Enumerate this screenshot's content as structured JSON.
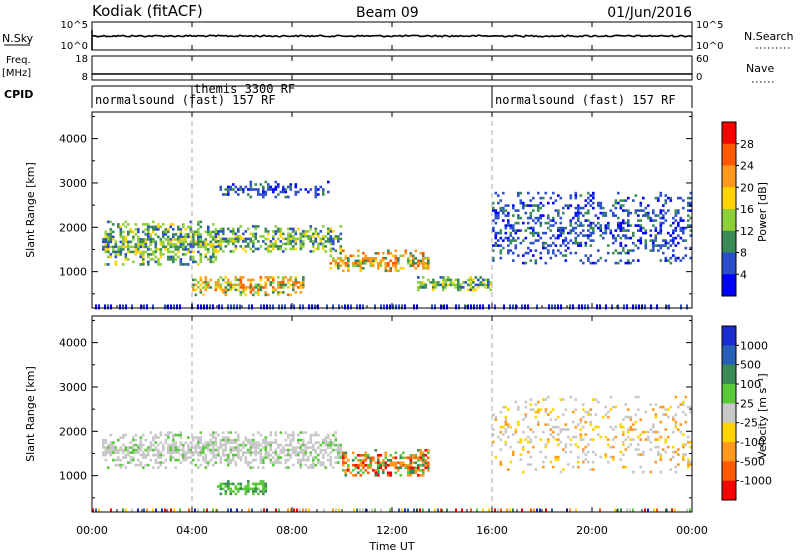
{
  "header": {
    "title": "Kodiak (fitACF)",
    "beam": "Beam 09",
    "date": "01/Jun/2016"
  },
  "panels": {
    "nsky": {
      "label": "N.Sky",
      "ticks": [
        "10^5",
        "10^0"
      ],
      "right_label": "N.Search",
      "right_ticks": [
        "10^5",
        "10^0"
      ]
    },
    "freq": {
      "label_line1": "Freq.",
      "label_line2": "[MHz]",
      "ticks": [
        "18",
        "8"
      ],
      "right_label": "Nave",
      "right_ticks": [
        "60",
        "0"
      ]
    },
    "cpid": {
      "label": "CPID",
      "segments": [
        {
          "name": "normalsound (fast) 157 RF",
          "start_hour": 0
        },
        {
          "name": "themis 3300 RF",
          "start_hour": 4
        },
        {
          "name": "normalsound (fast) 157 RF",
          "start_hour": 16
        }
      ]
    }
  },
  "xaxis": {
    "label": "Time UT",
    "ticks": [
      "00:00",
      "04:00",
      "08:00",
      "12:00",
      "16:00",
      "20:00",
      "00:00"
    ],
    "range_hours": [
      0,
      24
    ]
  },
  "chart_data": [
    {
      "type": "heatmap",
      "name": "power",
      "ylabel": "Slant Range [km]",
      "yticks": [
        1000,
        2000,
        3000,
        4000
      ],
      "ylim": [
        180,
        4600
      ],
      "colorbar_label": "Power [dB]",
      "colorbar_ticks": [
        "28",
        "24",
        "20",
        "16",
        "12",
        "8",
        "4"
      ],
      "colorbar_colors": [
        "#ff0000",
        "#ff5a00",
        "#ff9a1e",
        "#ffd500",
        "#8ccf3a",
        "#3a8a55",
        "#2a4fc8",
        "#0000ff"
      ],
      "echo_bands": [
        {
          "start_h": 0.4,
          "end_h": 5.0,
          "range_km": [
            1150,
            2150
          ],
          "intensity": "medium"
        },
        {
          "start_h": 5.0,
          "end_h": 10.0,
          "range_km": [
            1450,
            2050
          ],
          "intensity": "medium"
        },
        {
          "start_h": 9.5,
          "end_h": 13.5,
          "range_km": [
            1000,
            1500
          ],
          "intensity": "high"
        },
        {
          "start_h": 13.0,
          "end_h": 16.0,
          "range_km": [
            600,
            900
          ],
          "intensity": "medium"
        },
        {
          "start_h": 4.0,
          "end_h": 8.5,
          "range_km": [
            480,
            900
          ],
          "intensity": "high"
        },
        {
          "start_h": 5.0,
          "end_h": 9.5,
          "range_km": [
            2700,
            3050
          ],
          "intensity": "low"
        },
        {
          "start_h": 16.0,
          "end_h": 24.0,
          "range_km": [
            1200,
            2800
          ],
          "intensity": "low"
        }
      ]
    },
    {
      "type": "heatmap",
      "name": "velocity",
      "ylabel": "Slant Range [km]",
      "yticks": [
        1000,
        2000,
        3000,
        4000
      ],
      "ylim": [
        180,
        4600
      ],
      "colorbar_label": "Velocity [m s⁻¹]",
      "colorbar_ticks": [
        "1000",
        "500",
        "100",
        "25",
        "-25",
        "-100",
        "-500",
        "-1000"
      ],
      "colorbar_colors": [
        "#1a2bd0",
        "#2860b8",
        "#3a8a55",
        "#59c83a",
        "#c8c8c8",
        "#ffd500",
        "#ff9a1e",
        "#ff5a00",
        "#ff0000"
      ],
      "echo_bands": [
        {
          "start_h": 0.4,
          "end_h": 10.0,
          "range_km": [
            1200,
            2000
          ],
          "class": "ground"
        },
        {
          "start_h": 10.0,
          "end_h": 13.5,
          "range_km": [
            1000,
            1600
          ],
          "class": "negative"
        },
        {
          "start_h": 5.0,
          "end_h": 7.0,
          "range_km": [
            600,
            900
          ],
          "class": "positive"
        },
        {
          "start_h": 16.0,
          "end_h": 24.0,
          "range_km": [
            1100,
            2800
          ],
          "class": "sparse"
        }
      ]
    }
  ]
}
